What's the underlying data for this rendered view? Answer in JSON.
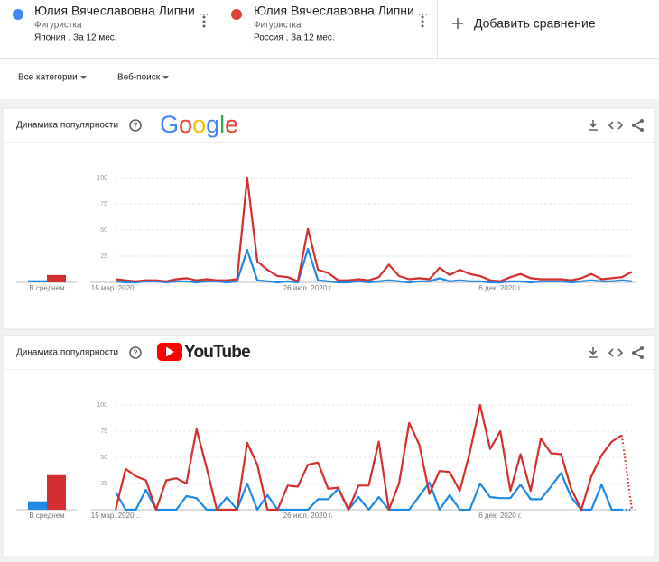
{
  "comparison_terms": [
    {
      "name": "Юлия Вячеславовна Липни ...",
      "category": "Фигуристка",
      "details": "Япония , За 12 мес.",
      "color": "#4285f4"
    },
    {
      "name": "Юлия Вячеславовна Липни ...",
      "category": "Фигуристка",
      "details": "Россия , За 12 мес.",
      "color": "#db4437"
    }
  ],
  "add_comparison": "Добавить сравнение",
  "filters": [
    "Все категории",
    "Веб-поиск"
  ],
  "chart_data": [
    {
      "type": "line",
      "title": "Динамика популярности",
      "source": "Google",
      "average_label": "В среднем",
      "categories": [
        "15 мар. 2020...",
        null,
        null,
        null,
        null,
        null,
        null,
        null,
        null,
        null,
        null,
        null,
        null,
        null,
        null,
        null,
        null,
        null,
        null,
        "26 июл. 2020 г.",
        null,
        null,
        null,
        null,
        null,
        null,
        null,
        null,
        null,
        null,
        null,
        null,
        null,
        null,
        null,
        null,
        null,
        null,
        "6 дек. 2020 г.",
        null,
        null,
        null,
        null,
        null,
        null,
        null,
        null,
        null,
        null,
        null,
        null,
        null
      ],
      "series": [
        {
          "color": "#1e88e5",
          "average": 2,
          "values": [
            1,
            0,
            0,
            1,
            1,
            0,
            1,
            1,
            0,
            1,
            1,
            0,
            1,
            31,
            2,
            1,
            0,
            1,
            0,
            32,
            2,
            1,
            0,
            0,
            1,
            0,
            1,
            2,
            1,
            0,
            1,
            1,
            4,
            1,
            2,
            1,
            1,
            0,
            0,
            1,
            1,
            0,
            1,
            1,
            1,
            0,
            1,
            2,
            1,
            1,
            2,
            1
          ]
        },
        {
          "color": "#d32f2f",
          "average": 7,
          "values": [
            3,
            2,
            1,
            2,
            2,
            1,
            3,
            4,
            2,
            3,
            2,
            2,
            3,
            100,
            20,
            12,
            6,
            5,
            1,
            51,
            12,
            9,
            2,
            2,
            3,
            2,
            5,
            17,
            6,
            3,
            4,
            3,
            14,
            7,
            12,
            8,
            6,
            2,
            1,
            5,
            8,
            4,
            3,
            3,
            3,
            2,
            4,
            8,
            3,
            4,
            5,
            10
          ]
        }
      ],
      "ylim": [
        0,
        100
      ],
      "yticks": [
        25,
        50,
        75,
        100
      ],
      "grid": true,
      "partial_last": false
    },
    {
      "type": "line",
      "title": "Динамика популярности",
      "source": "YouTube",
      "average_label": "В среднем",
      "categories": [
        "15 мар. 2020...",
        null,
        null,
        null,
        null,
        null,
        null,
        null,
        null,
        null,
        null,
        null,
        null,
        null,
        null,
        null,
        null,
        null,
        null,
        "26 июл. 2020 г.",
        null,
        null,
        null,
        null,
        null,
        null,
        null,
        null,
        null,
        null,
        null,
        null,
        null,
        null,
        null,
        null,
        null,
        null,
        "6 дек. 2020 г.",
        null,
        null,
        null,
        null,
        null,
        null,
        null,
        null,
        null,
        null,
        null,
        null,
        null
      ],
      "series": [
        {
          "color": "#1e88e5",
          "average": 8,
          "values": [
            17,
            0,
            0,
            19,
            0,
            0,
            0,
            13,
            11,
            0,
            0,
            12,
            0,
            25,
            0,
            14,
            0,
            0,
            0,
            0,
            10,
            10,
            20,
            0,
            12,
            0,
            12,
            0,
            0,
            0,
            13,
            26,
            0,
            14,
            0,
            0,
            25,
            12,
            11,
            11,
            24,
            10,
            10,
            22,
            35,
            12,
            0,
            0,
            24,
            0,
            0,
            0
          ]
        },
        {
          "color": "#d32f2f",
          "average": 33,
          "values": [
            0,
            39,
            32,
            28,
            0,
            28,
            30,
            25,
            77,
            40,
            0,
            0,
            0,
            64,
            43,
            0,
            0,
            23,
            22,
            43,
            45,
            20,
            21,
            0,
            23,
            23,
            65,
            0,
            25,
            83,
            62,
            15,
            37,
            36,
            18,
            55,
            100,
            58,
            75,
            18,
            53,
            18,
            68,
            54,
            53,
            20,
            0,
            32,
            52,
            65,
            71,
            0
          ]
        }
      ],
      "ylim": [
        0,
        100
      ],
      "yticks": [
        25,
        50,
        75,
        100
      ],
      "grid": true,
      "partial_last": true
    }
  ]
}
